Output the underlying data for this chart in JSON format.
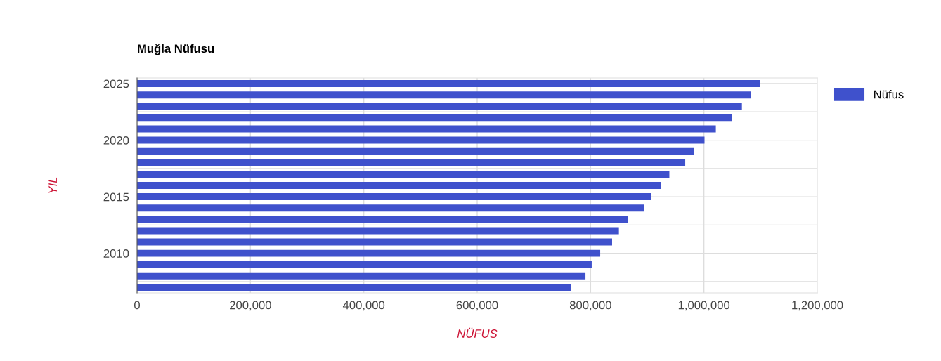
{
  "chart_data": {
    "type": "bar",
    "orientation": "horizontal",
    "title": "Muğla Nüfusu",
    "xlabel": "NÜFUS",
    "ylabel": "YIL",
    "x": [
      2025,
      2024,
      2023,
      2022,
      2021,
      2020,
      2019,
      2018,
      2017,
      2016,
      2015,
      2014,
      2013,
      2012,
      2011,
      2010,
      2009,
      2008,
      2007
    ],
    "series": [
      {
        "name": "Nüfus",
        "color": "#3f51cc",
        "values": [
          1099000,
          1083000,
          1067000,
          1049000,
          1021000,
          1001000,
          983000,
          967000,
          939000,
          924000,
          907000,
          894000,
          866000,
          850000,
          838000,
          817000,
          802000,
          791000,
          765000
        ]
      }
    ],
    "xlim": [
      0,
      1200000
    ],
    "xticks": [
      {
        "value": 0,
        "label": "0"
      },
      {
        "value": 200000,
        "label": "200,000"
      },
      {
        "value": 400000,
        "label": "400,000"
      },
      {
        "value": 600000,
        "label": "600,000"
      },
      {
        "value": 800000,
        "label": "800,000"
      },
      {
        "value": 1000000,
        "label": "1,000,000"
      },
      {
        "value": 1200000,
        "label": "1,200,000"
      }
    ],
    "ylim": [
      2006.5,
      2025.5
    ],
    "yticks": [
      {
        "value": 2007.5,
        "label": null
      },
      2010,
      {
        "value": 2012.5,
        "label": null
      },
      2015,
      {
        "value": 2017.5,
        "label": null
      },
      2020,
      {
        "value": 2022.5,
        "label": null
      },
      2025
    ],
    "grid": true,
    "legend": "top right"
  }
}
